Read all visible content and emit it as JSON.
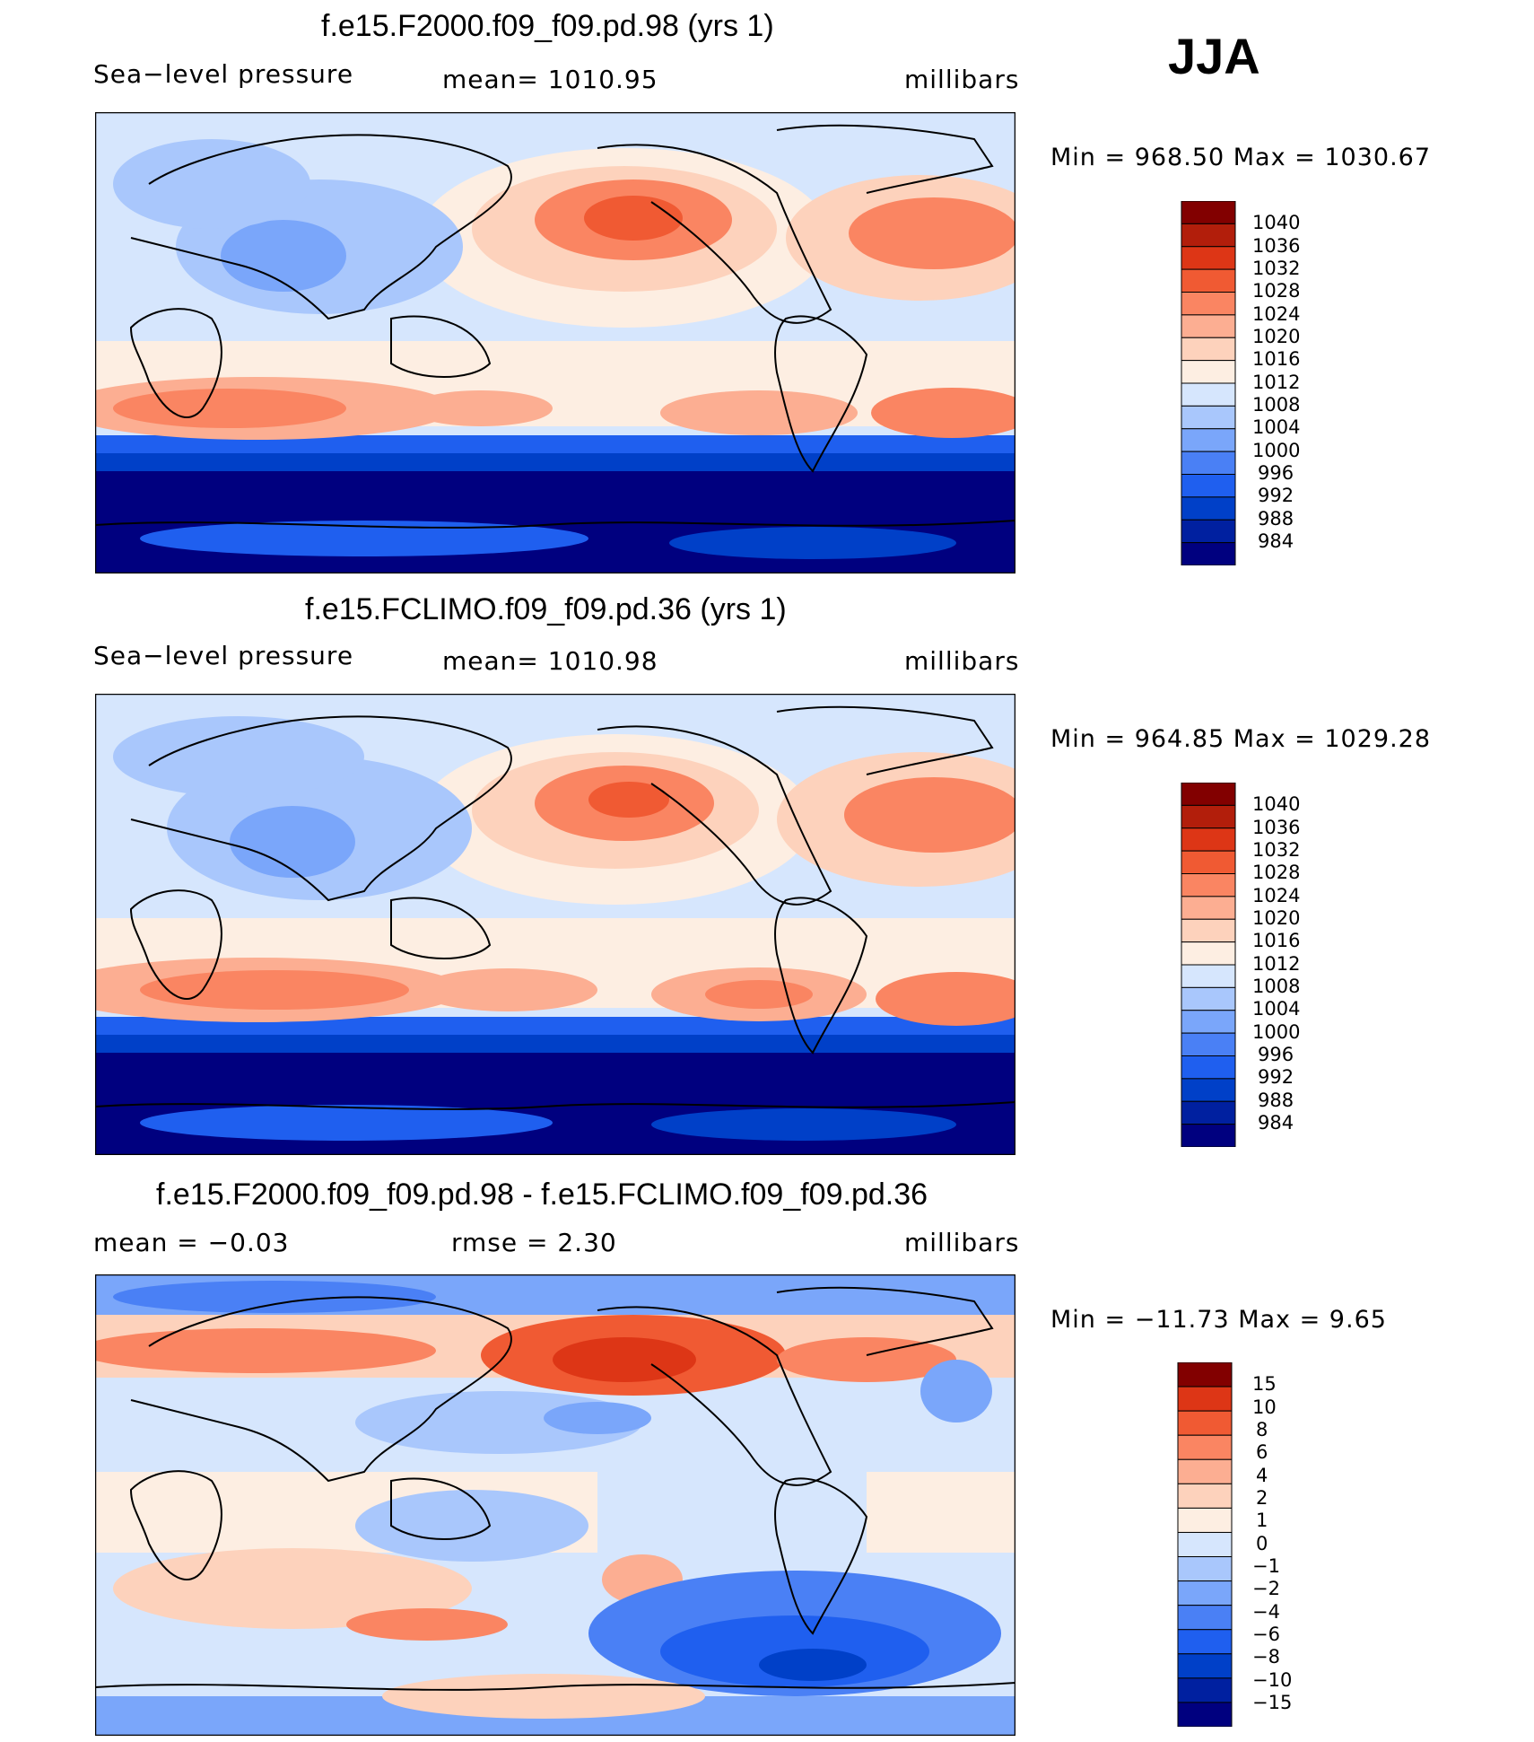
{
  "season": "JJA",
  "colors": {
    "pressure": [
      "#00007f",
      "#0020a0",
      "#0040c8",
      "#1f5fef",
      "#4a80f5",
      "#7aa6fa",
      "#a9c7fc",
      "#d6e6fd",
      "#fdeee2",
      "#fdd2bc",
      "#fcae92",
      "#fa8562",
      "#f05a33",
      "#dd3616",
      "#b21e0b",
      "#820000"
    ],
    "difference": [
      "#00007f",
      "#0020a0",
      "#0040c8",
      "#1f5fef",
      "#4a80f5",
      "#7aa6fa",
      "#a9c7fc",
      "#d6e6fd",
      "#fdeee2",
      "#fdd2bc",
      "#fcae92",
      "#fa8562",
      "#f05a33",
      "#dd3616",
      "#820000"
    ],
    "coast": "#000000"
  },
  "panels": [
    {
      "title": "f.e15.F2000.f09_f09.pd.98 (yrs 1)",
      "left": "Sea−level pressure",
      "center": "mean=  1010.95",
      "right": "millibars",
      "minmax": "Min  =  968.50  Max  =  1030.67",
      "levels": [
        "1040",
        "1036",
        "1032",
        "1028",
        "1024",
        "1020",
        "1016",
        "1012",
        "1008",
        "1004",
        "1000",
        "996",
        "992",
        "988",
        "984"
      ]
    },
    {
      "title": "f.e15.FCLIMO.f09_f09.pd.36 (yrs 1)",
      "left": "Sea−level pressure",
      "center": "mean=  1010.98",
      "right": "millibars",
      "minmax": "Min  =  964.85  Max  =  1029.28",
      "levels": [
        "1040",
        "1036",
        "1032",
        "1028",
        "1024",
        "1020",
        "1016",
        "1012",
        "1008",
        "1004",
        "1000",
        "996",
        "992",
        "988",
        "984"
      ]
    },
    {
      "title": "f.e15.F2000.f09_f09.pd.98 - f.e15.FCLIMO.f09_f09.pd.36",
      "left": "mean  =    −0.03",
      "center": "rmse  =     2.30",
      "right": "millibars",
      "minmax": "Min  =  −11.73  Max  =      9.65",
      "levels": [
        "15",
        "10",
        "8",
        "6",
        "4",
        "2",
        "1",
        "0",
        "−1",
        "−2",
        "−4",
        "−6",
        "−8",
        "−10",
        "−15"
      ]
    }
  ]
}
